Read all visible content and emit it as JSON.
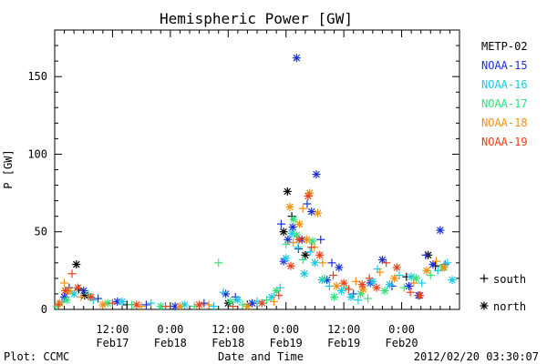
{
  "chart_data": {
    "type": "scatter",
    "title": "Hemispheric Power [GW]",
    "xlabel": "Date and Time",
    "ylabel": "P [GW]",
    "ylim": [
      0,
      180
    ],
    "xlim_hours": [
      0,
      84
    ],
    "x_ticks": [
      {
        "time": "12:00",
        "date": "Feb17"
      },
      {
        "time": "0:00",
        "date": "Feb18"
      },
      {
        "time": "12:00",
        "date": "Feb18"
      },
      {
        "time": "0:00",
        "date": "Feb19"
      },
      {
        "time": "12:00",
        "date": "Feb19"
      },
      {
        "time": "0:00",
        "date": "Feb20"
      }
    ],
    "y_ticks": [
      "0",
      "50",
      "100",
      "150"
    ],
    "legend": {
      "position": "right",
      "series_entries": [
        {
          "name": "METP-02",
          "color": "#000000"
        },
        {
          "name": "NOAA-15",
          "color": "#1a2fd6"
        },
        {
          "name": "NOAA-16",
          "color": "#19c9e8"
        },
        {
          "name": "NOAA-17",
          "color": "#33e07a"
        },
        {
          "name": "NOAA-18",
          "color": "#f09010"
        },
        {
          "name": "NOAA-19",
          "color": "#e8401a"
        }
      ],
      "marker_entries": [
        {
          "symbol": "+",
          "label": "south"
        },
        {
          "symbol": "*",
          "label": "north"
        }
      ]
    },
    "series": [
      {
        "name": "METP-02",
        "points": [
          [
            4.5,
            29,
            "north"
          ],
          [
            5.0,
            13,
            "south"
          ],
          [
            6.2,
            9,
            "north"
          ],
          [
            15,
            3,
            "south"
          ],
          [
            36,
            4,
            "north"
          ],
          [
            40,
            3,
            "south"
          ],
          [
            47.5,
            50,
            "north"
          ],
          [
            48.3,
            76,
            "north"
          ],
          [
            49.2,
            60,
            "south"
          ],
          [
            52,
            35,
            "north"
          ],
          [
            73,
            21,
            "south"
          ],
          [
            77.5,
            35,
            "north"
          ],
          [
            79,
            28,
            "south"
          ]
        ]
      },
      {
        "name": "NOAA-15",
        "points": [
          [
            2.0,
            8,
            "north"
          ],
          [
            3.0,
            14,
            "south"
          ],
          [
            6.0,
            12,
            "north"
          ],
          [
            9,
            7,
            "south"
          ],
          [
            13,
            5,
            "north"
          ],
          [
            19,
            3,
            "south"
          ],
          [
            25,
            2,
            "north"
          ],
          [
            31,
            4,
            "south"
          ],
          [
            35.5,
            10,
            "north"
          ],
          [
            37.5,
            8,
            "south"
          ],
          [
            41,
            4,
            "north"
          ],
          [
            47,
            55,
            "south"
          ],
          [
            47.5,
            31,
            "north"
          ],
          [
            48.4,
            45,
            "north"
          ],
          [
            49.4,
            53,
            "north"
          ],
          [
            50.2,
            162,
            "north"
          ],
          [
            50.6,
            39,
            "south"
          ],
          [
            51.3,
            45,
            "north"
          ],
          [
            52.4,
            68,
            "south"
          ],
          [
            53.3,
            63,
            "north"
          ],
          [
            54.3,
            87,
            "north"
          ],
          [
            55.2,
            45,
            "south"
          ],
          [
            56.5,
            19,
            "north"
          ],
          [
            57.5,
            30,
            "south"
          ],
          [
            59,
            27,
            "north"
          ],
          [
            62,
            10,
            "south"
          ],
          [
            65.5,
            17,
            "north"
          ],
          [
            68,
            32,
            "north"
          ],
          [
            70,
            15,
            "south"
          ],
          [
            73.5,
            15,
            "north"
          ],
          [
            75.5,
            9,
            "north"
          ],
          [
            77,
            35,
            "south"
          ],
          [
            78.5,
            29,
            "north"
          ],
          [
            80,
            51,
            "north"
          ],
          [
            81,
            29,
            "south"
          ]
        ]
      },
      {
        "name": "NOAA-16",
        "points": [
          [
            1.5,
            5,
            "south"
          ],
          [
            4.0,
            10,
            "north"
          ],
          [
            8,
            6,
            "south"
          ],
          [
            14,
            5,
            "north"
          ],
          [
            20,
            4,
            "south"
          ],
          [
            27,
            3,
            "north"
          ],
          [
            33,
            2,
            "south"
          ],
          [
            35,
            11,
            "south"
          ],
          [
            38,
            6,
            "north"
          ],
          [
            42,
            5,
            "south"
          ],
          [
            45,
            8,
            "north"
          ],
          [
            46.8,
            14,
            "south"
          ],
          [
            48,
            33,
            "north"
          ],
          [
            49.2,
            49,
            "north"
          ],
          [
            50.5,
            40,
            "south"
          ],
          [
            51.8,
            23,
            "north"
          ],
          [
            53,
            37,
            "south"
          ],
          [
            54,
            30,
            "north"
          ],
          [
            55.5,
            19,
            "north"
          ],
          [
            57,
            15,
            "south"
          ],
          [
            59.5,
            12,
            "north"
          ],
          [
            61.5,
            8,
            "north"
          ],
          [
            63,
            6,
            "south"
          ],
          [
            66,
            18,
            "north"
          ],
          [
            67,
            26,
            "south"
          ],
          [
            69.5,
            16,
            "north"
          ],
          [
            71.5,
            22,
            "south"
          ],
          [
            74,
            21,
            "north"
          ],
          [
            76.2,
            17,
            "south"
          ],
          [
            79.5,
            25,
            "south"
          ],
          [
            81.5,
            30,
            "south"
          ],
          [
            82.5,
            19,
            "north"
          ]
        ]
      },
      {
        "name": "NOAA-17",
        "points": [
          [
            0.5,
            2,
            "south"
          ],
          [
            2.5,
            6,
            "north"
          ],
          [
            7,
            10,
            "south"
          ],
          [
            11,
            4,
            "north"
          ],
          [
            16,
            3,
            "south"
          ],
          [
            22,
            2,
            "north"
          ],
          [
            29,
            2,
            "south"
          ],
          [
            34,
            30,
            "south"
          ],
          [
            36.5,
            5,
            "north"
          ],
          [
            39,
            3,
            "south"
          ],
          [
            44,
            6,
            "south"
          ],
          [
            46,
            12,
            "north"
          ],
          [
            48,
            42,
            "south"
          ],
          [
            49.6,
            58,
            "north"
          ],
          [
            50.2,
            48,
            "north"
          ],
          [
            51.5,
            32,
            "south"
          ],
          [
            53.5,
            44,
            "north"
          ],
          [
            56,
            20,
            "south"
          ],
          [
            58,
            8,
            "north"
          ],
          [
            60.5,
            14,
            "south"
          ],
          [
            63.5,
            10,
            "north"
          ],
          [
            65,
            7,
            "south"
          ],
          [
            68.5,
            12,
            "north"
          ],
          [
            72.5,
            14,
            "south"
          ],
          [
            75,
            20,
            "north"
          ],
          [
            78,
            22,
            "south"
          ],
          [
            80.5,
            27,
            "north"
          ]
        ]
      },
      {
        "name": "NOAA-18",
        "points": [
          [
            1.0,
            4,
            "north"
          ],
          [
            2.0,
            17,
            "south"
          ],
          [
            3.0,
            12,
            "north"
          ],
          [
            5.5,
            8,
            "south"
          ],
          [
            10,
            3,
            "north"
          ],
          [
            18,
            2,
            "south"
          ],
          [
            26,
            2,
            "north"
          ],
          [
            32,
            3,
            "south"
          ],
          [
            40,
            2,
            "north"
          ],
          [
            45.5,
            5,
            "south"
          ],
          [
            48.8,
            66,
            "north"
          ],
          [
            49.5,
            43,
            "south"
          ],
          [
            50.8,
            55,
            "north"
          ],
          [
            51.5,
            65,
            "south"
          ],
          [
            52.3,
            45,
            "north"
          ],
          [
            52.9,
            75,
            "north"
          ],
          [
            53.9,
            40,
            "south"
          ],
          [
            54.6,
            62,
            "north"
          ],
          [
            55.6,
            30,
            "south"
          ],
          [
            58.5,
            15,
            "north"
          ],
          [
            62.5,
            18,
            "south"
          ],
          [
            64,
            13,
            "north"
          ],
          [
            67.5,
            24,
            "south"
          ],
          [
            70.5,
            20,
            "north"
          ],
          [
            74.5,
            17,
            "south"
          ],
          [
            77.2,
            25,
            "north"
          ],
          [
            79.2,
            31,
            "south"
          ],
          [
            80.8,
            27,
            "north"
          ]
        ]
      },
      {
        "name": "NOAA-19",
        "points": [
          [
            0.8,
            3,
            "south"
          ],
          [
            2.2,
            12,
            "north"
          ],
          [
            3.6,
            23,
            "south"
          ],
          [
            4.8,
            14,
            "north"
          ],
          [
            7.5,
            8,
            "north"
          ],
          [
            12,
            4,
            "south"
          ],
          [
            17,
            3,
            "north"
          ],
          [
            23,
            2,
            "south"
          ],
          [
            30,
            3,
            "north"
          ],
          [
            37,
            2,
            "south"
          ],
          [
            43,
            4,
            "north"
          ],
          [
            46.5,
            9,
            "south"
          ],
          [
            49.0,
            28,
            "north"
          ],
          [
            50.7,
            45,
            "north"
          ],
          [
            52.6,
            73,
            "north"
          ],
          [
            53.3,
            40,
            "south"
          ],
          [
            55,
            35,
            "north"
          ],
          [
            57.8,
            22,
            "south"
          ],
          [
            60,
            17,
            "north"
          ],
          [
            61,
            13,
            "south"
          ],
          [
            63.8,
            16,
            "north"
          ],
          [
            65.3,
            20,
            "south"
          ],
          [
            66.8,
            14,
            "north"
          ],
          [
            68.8,
            30,
            "south"
          ],
          [
            71,
            27,
            "north"
          ],
          [
            73.8,
            11,
            "south"
          ],
          [
            75.8,
            9,
            "north"
          ]
        ]
      }
    ]
  },
  "footer": {
    "left": "Plot: CCMC",
    "right": "2012/02/20 03:30:07"
  }
}
